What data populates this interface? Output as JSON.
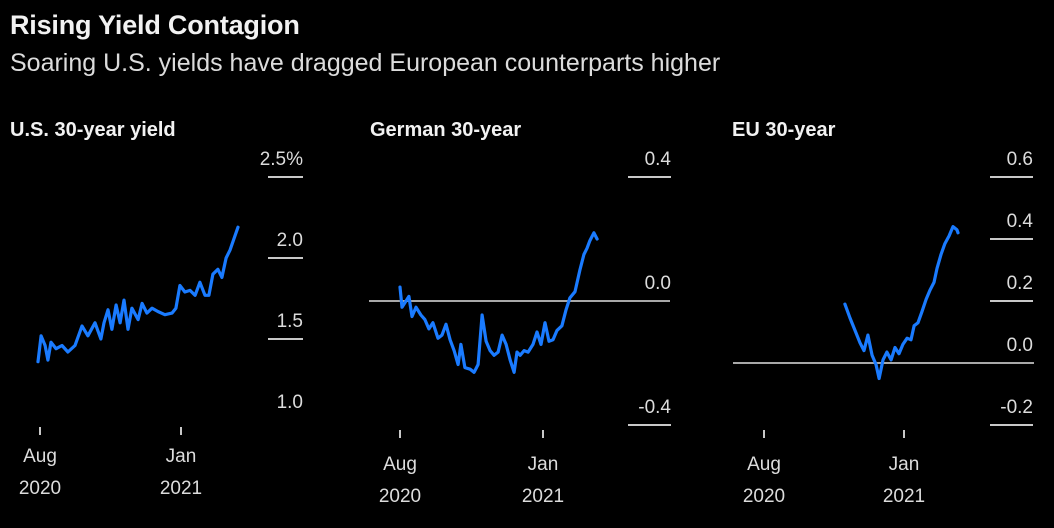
{
  "title": "Rising Yield Contagion",
  "subtitle": "Soaring U.S. yields have dragged European counterparts higher",
  "line_color": "#1a7bff",
  "chart_data": [
    {
      "type": "line",
      "title": "U.S. 30-year yield",
      "xlabel": "",
      "ylabel": "",
      "x_unit": "months since Aug 2020",
      "x_ticks": [
        {
          "value": 0,
          "label": [
            "Aug",
            "2020"
          ]
        },
        {
          "value": 5,
          "label": [
            "Jan",
            "2021"
          ]
        }
      ],
      "y_ticks": [
        {
          "value": 2.5,
          "label": "2.5%"
        },
        {
          "value": 2.0,
          "label": "2.0"
        },
        {
          "value": 1.5,
          "label": "1.5"
        },
        {
          "value": 1.0,
          "label": "1.0"
        }
      ],
      "y_tick_lines": [
        2.5,
        2.0,
        1.5
      ],
      "ylim": [
        1.0,
        2.5
      ],
      "baseline": null,
      "grid": false,
      "series": [
        {
          "name": "U.S. 30-year yield",
          "points": [
            [
              -0.07,
              1.36
            ],
            [
              0.04,
              1.52
            ],
            [
              0.18,
              1.46
            ],
            [
              0.28,
              1.37
            ],
            [
              0.39,
              1.48
            ],
            [
              0.57,
              1.44
            ],
            [
              0.78,
              1.46
            ],
            [
              0.99,
              1.42
            ],
            [
              1.24,
              1.46
            ],
            [
              1.49,
              1.58
            ],
            [
              1.7,
              1.52
            ],
            [
              1.95,
              1.6
            ],
            [
              2.16,
              1.5
            ],
            [
              2.27,
              1.6
            ],
            [
              2.41,
              1.68
            ],
            [
              2.55,
              1.56
            ],
            [
              2.7,
              1.71
            ],
            [
              2.84,
              1.6
            ],
            [
              2.98,
              1.74
            ],
            [
              3.12,
              1.56
            ],
            [
              3.26,
              1.69
            ],
            [
              3.48,
              1.62
            ],
            [
              3.62,
              1.72
            ],
            [
              3.79,
              1.66
            ],
            [
              3.97,
              1.69
            ],
            [
              4.18,
              1.67
            ],
            [
              4.43,
              1.65
            ],
            [
              4.68,
              1.66
            ],
            [
              4.82,
              1.69
            ],
            [
              4.96,
              1.83
            ],
            [
              5.14,
              1.79
            ],
            [
              5.32,
              1.8
            ],
            [
              5.5,
              1.77
            ],
            [
              5.67,
              1.85
            ],
            [
              5.85,
              1.77
            ],
            [
              5.99,
              1.77
            ],
            [
              6.13,
              1.9
            ],
            [
              6.31,
              1.93
            ],
            [
              6.45,
              1.88
            ],
            [
              6.6,
              2.0
            ],
            [
              6.74,
              2.05
            ],
            [
              6.88,
              2.12
            ],
            [
              7.02,
              2.19
            ]
          ]
        }
      ]
    },
    {
      "type": "line",
      "title": "German 30-year",
      "xlabel": "",
      "ylabel": "",
      "x_unit": "months since Aug 2020",
      "x_ticks": [
        {
          "value": 0,
          "label": [
            "Aug",
            "2020"
          ]
        },
        {
          "value": 5,
          "label": [
            "Jan",
            "2021"
          ]
        }
      ],
      "y_ticks": [
        {
          "value": 0.4,
          "label": "0.4"
        },
        {
          "value": 0.0,
          "label": "0.0"
        },
        {
          "value": -0.4,
          "label": "-0.4"
        }
      ],
      "y_tick_lines": [
        0.4,
        -0.4
      ],
      "ylim": [
        -0.4,
        0.4
      ],
      "baseline": 0.0,
      "grid": false,
      "series": [
        {
          "name": "German 30-year",
          "points": [
            [
              0.0,
              0.045
            ],
            [
              0.07,
              -0.02
            ],
            [
              0.21,
              0.0
            ],
            [
              0.31,
              0.015
            ],
            [
              0.42,
              -0.05
            ],
            [
              0.56,
              -0.02
            ],
            [
              0.73,
              -0.045
            ],
            [
              0.87,
              -0.06
            ],
            [
              1.01,
              -0.09
            ],
            [
              1.15,
              -0.07
            ],
            [
              1.33,
              -0.12
            ],
            [
              1.47,
              -0.11
            ],
            [
              1.61,
              -0.075
            ],
            [
              1.75,
              -0.125
            ],
            [
              1.89,
              -0.16
            ],
            [
              2.03,
              -0.205
            ],
            [
              2.13,
              -0.14
            ],
            [
              2.27,
              -0.215
            ],
            [
              2.45,
              -0.22
            ],
            [
              2.59,
              -0.23
            ],
            [
              2.73,
              -0.205
            ],
            [
              2.87,
              -0.045
            ],
            [
              3.01,
              -0.13
            ],
            [
              3.15,
              -0.16
            ],
            [
              3.29,
              -0.175
            ],
            [
              3.43,
              -0.165
            ],
            [
              3.57,
              -0.11
            ],
            [
              3.71,
              -0.14
            ],
            [
              3.85,
              -0.19
            ],
            [
              3.99,
              -0.23
            ],
            [
              4.09,
              -0.165
            ],
            [
              4.2,
              -0.175
            ],
            [
              4.34,
              -0.16
            ],
            [
              4.48,
              -0.165
            ],
            [
              4.65,
              -0.14
            ],
            [
              4.79,
              -0.1
            ],
            [
              4.93,
              -0.14
            ],
            [
              5.07,
              -0.07
            ],
            [
              5.21,
              -0.13
            ],
            [
              5.35,
              -0.125
            ],
            [
              5.49,
              -0.095
            ],
            [
              5.66,
              -0.08
            ],
            [
              5.8,
              -0.03
            ],
            [
              5.94,
              0.01
            ],
            [
              6.12,
              0.03
            ],
            [
              6.29,
              0.1
            ],
            [
              6.43,
              0.15
            ],
            [
              6.54,
              0.17
            ],
            [
              6.64,
              0.195
            ],
            [
              6.78,
              0.22
            ],
            [
              6.89,
              0.2
            ]
          ]
        }
      ]
    },
    {
      "type": "line",
      "title": "EU 30-year",
      "xlabel": "",
      "ylabel": "",
      "x_unit": "months since Aug 2020",
      "x_ticks": [
        {
          "value": 0,
          "label": [
            "Aug",
            "2020"
          ]
        },
        {
          "value": 5,
          "label": [
            "Jan",
            "2021"
          ]
        }
      ],
      "y_ticks": [
        {
          "value": 0.6,
          "label": "0.6"
        },
        {
          "value": 0.4,
          "label": "0.4"
        },
        {
          "value": 0.2,
          "label": "0.2"
        },
        {
          "value": 0.0,
          "label": "0.0"
        },
        {
          "value": -0.2,
          "label": "-0.2"
        }
      ],
      "y_tick_lines": [
        0.6,
        0.4,
        0.2,
        -0.2
      ],
      "ylim": [
        -0.2,
        0.6
      ],
      "baseline": 0.0,
      "grid": false,
      "series": [
        {
          "name": "EU 30-year",
          "points": [
            [
              2.89,
              0.19
            ],
            [
              3.07,
              0.145
            ],
            [
              3.25,
              0.105
            ],
            [
              3.43,
              0.065
            ],
            [
              3.57,
              0.04
            ],
            [
              3.71,
              0.09
            ],
            [
              3.86,
              0.025
            ],
            [
              4.0,
              -0.005
            ],
            [
              4.11,
              -0.05
            ],
            [
              4.25,
              0.01
            ],
            [
              4.39,
              0.035
            ],
            [
              4.54,
              0.01
            ],
            [
              4.68,
              0.05
            ],
            [
              4.82,
              0.03
            ],
            [
              4.96,
              0.06
            ],
            [
              5.11,
              0.08
            ],
            [
              5.25,
              0.075
            ],
            [
              5.36,
              0.12
            ],
            [
              5.5,
              0.13
            ],
            [
              5.64,
              0.165
            ],
            [
              5.79,
              0.205
            ],
            [
              5.93,
              0.235
            ],
            [
              6.07,
              0.26
            ],
            [
              6.18,
              0.305
            ],
            [
              6.32,
              0.35
            ],
            [
              6.46,
              0.385
            ],
            [
              6.61,
              0.41
            ],
            [
              6.75,
              0.44
            ],
            [
              6.89,
              0.43
            ],
            [
              6.93,
              0.42
            ]
          ]
        }
      ]
    }
  ]
}
